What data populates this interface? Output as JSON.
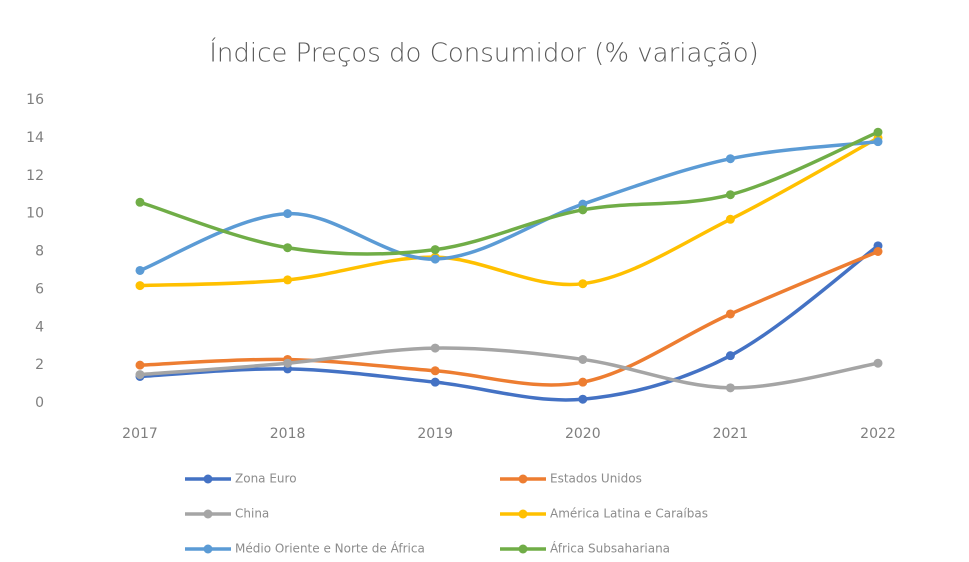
{
  "chart_data": {
    "type": "line",
    "title": "Índice Preços do Consumidor (% variação)",
    "categories": [
      "2017",
      "2018",
      "2019",
      "2020",
      "2021",
      "2022"
    ],
    "ylim": [
      0,
      16
    ],
    "yticks": [
      0,
      2,
      4,
      6,
      8,
      10,
      12,
      14,
      16
    ],
    "grid": false,
    "smooth": true,
    "legend": "bottom",
    "series": [
      {
        "name": "Zona Euro",
        "color": "#4472c4",
        "values": [
          1.4,
          1.8,
          1.1,
          0.2,
          2.5,
          8.3
        ]
      },
      {
        "name": "Estados Unidos",
        "color": "#ed7d31",
        "values": [
          2.0,
          2.3,
          1.7,
          1.1,
          4.7,
          8.0
        ]
      },
      {
        "name": "China",
        "color": "#a5a5a5",
        "values": [
          1.5,
          2.1,
          2.9,
          2.3,
          0.8,
          2.1
        ]
      },
      {
        "name": "América Latina e Caraíbas",
        "color": "#ffc000",
        "values": [
          6.2,
          6.5,
          7.7,
          6.3,
          9.7,
          14.0
        ]
      },
      {
        "name": "Médio Oriente e Norte de África",
        "color": "#5b9bd5",
        "values": [
          7.0,
          10.0,
          7.6,
          10.5,
          12.9,
          13.8
        ]
      },
      {
        "name": "África Subsahariana",
        "color": "#70ad47",
        "values": [
          10.6,
          8.2,
          8.1,
          10.2,
          11.0,
          14.3
        ]
      }
    ]
  }
}
